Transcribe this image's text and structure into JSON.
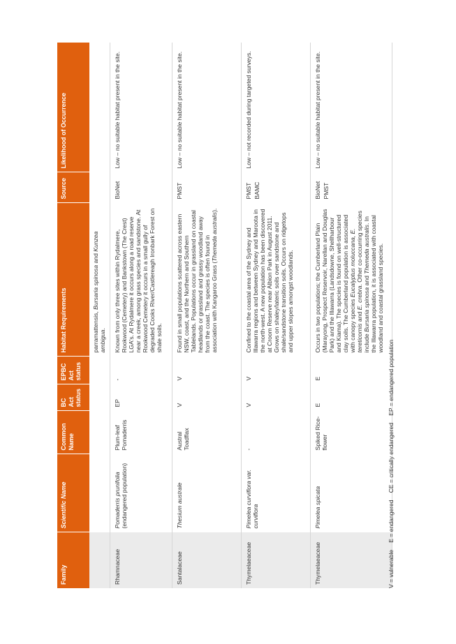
{
  "headers": {
    "family": "Family",
    "scientific_name": "Scientific Name",
    "common_name": "Common Name",
    "bc_act": "BC Act status",
    "epbc_act": "EPBC Act status",
    "habitat": "Habitat Requirements",
    "source": "Source",
    "likelihood": "Likelihood of Occurrence"
  },
  "continuation": {
    "habitat_prefix": "parramattensis, ",
    "habitat_italic_1": "Bursaria spinosa",
    "habitat_mid": " and ",
    "habitat_italic_2": "Kunzea ambigua",
    "habitat_suffix": "."
  },
  "rows": [
    {
      "family": "Rhamnaceae",
      "sci_italic": "Pomaderris prunifolia",
      "sci_plain": " (endangered population)",
      "common": "Plum-leaf Pomaderris",
      "bc": "EP",
      "epbc": "-",
      "habitat": "Known from only three sites within Rydalmere, Rookwood (Cemetery) and Bankstown (The Crest) LGA's. At Rydalmere it occurs along a road reserve near a creek, among grass species and sandstone. At Rookwood Cemetery it occurs in a small gully of degraded Cooks River/Castlereagh Ironbark Forest on shale soils.",
      "source": [
        "BioNet"
      ],
      "likelihood": "Low – no suitable habitat present in the site."
    },
    {
      "family": "Santalaceae",
      "sci_italic": "Thesium australe",
      "sci_plain": "",
      "common": "Austral Toadflax",
      "bc": "V",
      "epbc": "V",
      "habitat_pre": "Found in small populations scattered across eastern NSW, coast, and the Northern and Southern Tablelands. Populations occur in grassland on coastal headlands or grassland and grassy woodland away from the coast. The species is often found in association with Kangaroo Grass (",
      "habitat_italic": "Themeda australis",
      "habitat_post": ").",
      "source": [
        "PMST"
      ],
      "likelihood": "Low – no suitable habitat present in the site."
    },
    {
      "family": "Thymelaeaceae",
      "sci_italic": "Pimelea curviflora var. curviflora",
      "sci_plain": "",
      "common": "-",
      "bc": "V",
      "epbc": "V",
      "habitat": "Confined to the coastal area of the Sydney and Illawarra regions and between Sydney and Maroota in the north-west. A new population has been discovered at Croom Reserve near Albion Park in August 2011. Grows on shaley/lateric soils over sandstone and shale/sandstone transition soils. Occurs on ridgetops and upper slopes amongst woodlands.",
      "source": [
        "PMST",
        "BAMC"
      ],
      "likelihood": "Low – not recorded during targeted surveys."
    },
    {
      "family": "Thymelaeaceae",
      "sci_italic": "Pimelea spicata",
      "sci_plain": "",
      "common": "Spiked Rice-flower",
      "bc": "E",
      "epbc": "E",
      "habitat_a": "Occurs in two populations; the Cumberland Plain (Marayong, Prospect Reservoir, Narellan and Douglas Park) and the Illawarra (Landsdowne, Shellharbour and Kiama). The species is found on well-structured clay soils. The Cumberland population is associated with canopy species ",
      "habitat_i1": "Eucalyptus moluccana, E. tereticornis",
      "habitat_b": " and ",
      "habitat_i2": "E. crebra",
      "habitat_c": ". Other co-occurring species include ",
      "habitat_i3": "Bursaria spinosa",
      "habitat_d": " and ",
      "habitat_i4": "Themeda australis",
      "habitat_e": ". In the Illawarra population, it is associated with coastal woodland and coastal grassland species.",
      "source": [
        "BioNet",
        "PMST"
      ],
      "likelihood": "Low – no suitable habitat present in the site."
    }
  ],
  "legend": {
    "v": "V = vulnerable",
    "e": "E = endangered",
    "ce": "CE = critically endangered",
    "ep": "EP = endangered population"
  },
  "colors": {
    "header_bg": "#E0600E",
    "family_bg": "#ebebeb",
    "text": "#333333"
  }
}
